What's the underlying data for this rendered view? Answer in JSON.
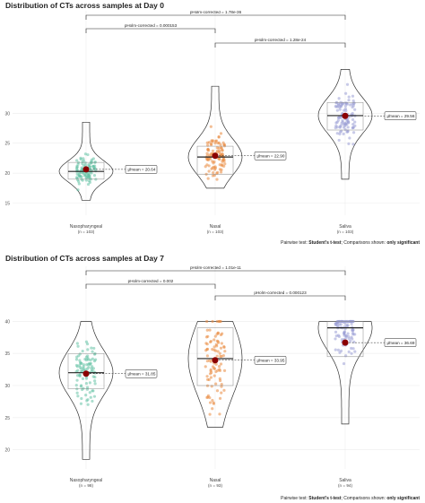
{
  "chart_data": [
    {
      "type": "violin",
      "title": "Distribution of CTs across samples at Day 0",
      "ylim": [
        13,
        42
      ],
      "yticks": [
        15,
        20,
        25,
        30
      ],
      "yticklabels": [
        "15",
        "20",
        "25",
        "30"
      ],
      "categories": [
        {
          "name": "Nasopharyngeal",
          "n": "(n = 103)",
          "mean": 20.64,
          "mean_label": "μ̂mean = 20.64",
          "median": 20.3,
          "q1": 19.0,
          "q3": 21.8,
          "min": 15.5,
          "max": 28.5,
          "color": "#66c2a5"
        },
        {
          "name": "Nasal",
          "n": "(n = 103)",
          "mean": 22.9,
          "mean_label": "μ̂mean = 22.90",
          "median": 22.7,
          "q1": 19.8,
          "q3": 24.5,
          "min": 17.5,
          "max": 34.5,
          "color": "#e98a3f"
        },
        {
          "name": "Saliva",
          "n": "(n = 103)",
          "mean": 29.56,
          "mean_label": "μ̂mean = 29.56",
          "median": 29.6,
          "q1": 27.2,
          "q3": 31.8,
          "min": 19.0,
          "max": 37.3,
          "color": "#9b9fd6"
        }
      ],
      "comparisons": [
        {
          "from": 0,
          "to": 2,
          "label": "pHolm-corrected = 1.78e-36"
        },
        {
          "from": 0,
          "to": 1,
          "label": "pHolm-corrected = 0.000153"
        },
        {
          "from": 1,
          "to": 2,
          "label": "pHolm-corrected = 1.28e-24"
        }
      ],
      "caption": "Pairwise test: Student's t-test; Comparisons shown: only significant"
    },
    {
      "type": "violin",
      "title": "Distribution of CTs across samples at Day 7",
      "ylim": [
        17,
        43
      ],
      "yticks": [
        20,
        25,
        30,
        35,
        40
      ],
      "yticklabels": [
        "20",
        "25",
        "30",
        "35",
        "40"
      ],
      "categories": [
        {
          "name": "Nasopharyngeal",
          "n": "(n = 98)",
          "mean": 31.85,
          "mean_label": "μ̂mean = 31.85",
          "median": 32.0,
          "q1": 29.5,
          "q3": 35.0,
          "min": 18.5,
          "max": 40.0,
          "color": "#66c2a5"
        },
        {
          "name": "Nasal",
          "n": "(n = 93)",
          "mean": 33.95,
          "mean_label": "μ̂mean = 33.95",
          "median": 34.2,
          "q1": 30.0,
          "q3": 39.0,
          "min": 23.5,
          "max": 40.0,
          "color": "#e98a3f"
        },
        {
          "name": "Saliva",
          "n": "(n = 94)",
          "mean": 36.69,
          "mean_label": "μ̂mean = 36.69",
          "median": 39.0,
          "q1": 34.5,
          "q3": 40.0,
          "min": 24.0,
          "max": 40.0,
          "color": "#9b9fd6"
        }
      ],
      "comparisons": [
        {
          "from": 0,
          "to": 2,
          "label": "pHolm-corrected = 1.01e-11"
        },
        {
          "from": 0,
          "to": 1,
          "label": "pHolm-corrected = 0.002"
        },
        {
          "from": 1,
          "to": 2,
          "label": "pHolm-corrected = 0.000123"
        }
      ],
      "caption": "Pairwise test: Student's t-test; Comparisons shown: only significant"
    }
  ]
}
